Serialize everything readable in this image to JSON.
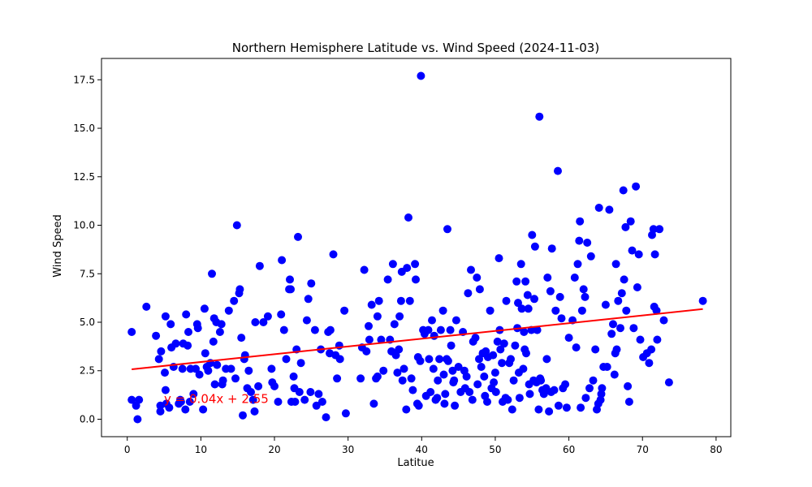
{
  "chart_data": {
    "type": "scatter",
    "title": "Northern Hemisphere Latitude vs. Wind Speed (2024-11-03)",
    "xlabel": "Latitue",
    "ylabel": "Wind Speed",
    "xlim": [
      -3.5,
      82
    ],
    "ylim": [
      -0.9,
      18.6
    ],
    "xticks": [
      0,
      10,
      20,
      30,
      40,
      50,
      60,
      70,
      80
    ],
    "yticks": [
      0.0,
      2.5,
      5.0,
      7.5,
      10.0,
      12.5,
      15.0,
      17.5
    ],
    "ytick_labels": [
      "0.0",
      "2.5",
      "5.0",
      "7.5",
      "10.0",
      "12.5",
      "15.0",
      "17.5"
    ],
    "grid": false,
    "point_color": "#0000ff",
    "line_color": "#ff0000",
    "regression": {
      "slope": 0.04,
      "intercept": 2.55,
      "x_range": [
        0.6,
        78.2
      ]
    },
    "annotation": {
      "text": "y = 0.04x + 2.55",
      "x": 5.0,
      "y": 1.05
    },
    "points": [
      [
        0.6,
        4.5
      ],
      [
        0.6,
        1.0
      ],
      [
        1.2,
        0.7
      ],
      [
        1.4,
        0.0
      ],
      [
        1.6,
        1.0
      ],
      [
        2.6,
        5.8
      ],
      [
        3.9,
        4.3
      ],
      [
        4.3,
        3.1
      ],
      [
        4.6,
        3.5
      ],
      [
        4.5,
        0.7
      ],
      [
        4.5,
        0.4
      ],
      [
        5.2,
        5.3
      ],
      [
        5.1,
        2.4
      ],
      [
        5.2,
        1.5
      ],
      [
        5.3,
        0.8
      ],
      [
        5.7,
        0.6
      ],
      [
        5.9,
        4.9
      ],
      [
        6.0,
        3.7
      ],
      [
        6.3,
        2.7
      ],
      [
        6.6,
        3.9
      ],
      [
        7.0,
        0.8
      ],
      [
        7.2,
        1.0
      ],
      [
        7.3,
        0.9
      ],
      [
        7.5,
        2.6
      ],
      [
        7.6,
        3.9
      ],
      [
        7.9,
        0.5
      ],
      [
        8.0,
        5.4
      ],
      [
        8.2,
        3.8
      ],
      [
        8.3,
        4.5
      ],
      [
        8.5,
        0.9
      ],
      [
        8.6,
        2.6
      ],
      [
        9.0,
        1.3
      ],
      [
        9.3,
        2.6
      ],
      [
        9.5,
        4.9
      ],
      [
        9.6,
        4.7
      ],
      [
        9.8,
        2.3
      ],
      [
        10.3,
        0.5
      ],
      [
        10.5,
        5.7
      ],
      [
        10.6,
        3.4
      ],
      [
        10.8,
        2.7
      ],
      [
        11.0,
        2.5
      ],
      [
        11.3,
        2.9
      ],
      [
        11.5,
        7.5
      ],
      [
        11.7,
        4.0
      ],
      [
        11.8,
        5.2
      ],
      [
        11.9,
        1.8
      ],
      [
        12.1,
        5.0
      ],
      [
        12.2,
        2.8
      ],
      [
        12.6,
        4.5
      ],
      [
        12.8,
        4.9
      ],
      [
        12.9,
        1.8
      ],
      [
        13.0,
        2.0
      ],
      [
        13.4,
        2.6
      ],
      [
        13.8,
        5.6
      ],
      [
        14.1,
        2.6
      ],
      [
        14.5,
        6.1
      ],
      [
        14.7,
        2.1
      ],
      [
        14.9,
        10.0
      ],
      [
        15.2,
        6.5
      ],
      [
        15.3,
        6.7
      ],
      [
        15.5,
        4.2
      ],
      [
        15.7,
        0.2
      ],
      [
        15.9,
        3.1
      ],
      [
        16.0,
        3.3
      ],
      [
        16.3,
        1.6
      ],
      [
        16.5,
        2.5
      ],
      [
        16.8,
        1.4
      ],
      [
        17.1,
        1.0
      ],
      [
        17.3,
        0.4
      ],
      [
        17.4,
        5.0
      ],
      [
        17.8,
        1.7
      ],
      [
        18.0,
        7.9
      ],
      [
        18.5,
        5.0
      ],
      [
        19.1,
        5.3
      ],
      [
        19.6,
        2.6
      ],
      [
        19.7,
        1.9
      ],
      [
        20.0,
        1.7
      ],
      [
        20.5,
        0.9
      ],
      [
        20.9,
        5.4
      ],
      [
        21.0,
        8.2
      ],
      [
        21.3,
        4.6
      ],
      [
        21.6,
        3.1
      ],
      [
        22.0,
        6.7
      ],
      [
        22.1,
        7.2
      ],
      [
        22.2,
        6.7
      ],
      [
        22.3,
        0.9
      ],
      [
        22.6,
        2.2
      ],
      [
        22.7,
        1.6
      ],
      [
        22.8,
        0.9
      ],
      [
        23.0,
        3.6
      ],
      [
        23.2,
        9.4
      ],
      [
        23.4,
        1.4
      ],
      [
        23.6,
        2.9
      ],
      [
        24.1,
        1.0
      ],
      [
        24.4,
        5.1
      ],
      [
        24.6,
        6.2
      ],
      [
        24.9,
        1.4
      ],
      [
        25.0,
        7.0
      ],
      [
        25.5,
        4.6
      ],
      [
        25.7,
        0.7
      ],
      [
        26.0,
        1.3
      ],
      [
        26.3,
        3.6
      ],
      [
        26.5,
        0.9
      ],
      [
        27.0,
        0.1
      ],
      [
        27.3,
        4.5
      ],
      [
        27.5,
        3.4
      ],
      [
        27.6,
        4.6
      ],
      [
        28.0,
        8.5
      ],
      [
        28.3,
        3.3
      ],
      [
        28.5,
        2.1
      ],
      [
        28.8,
        3.8
      ],
      [
        28.9,
        3.1
      ],
      [
        29.5,
        5.6
      ],
      [
        29.7,
        0.3
      ],
      [
        31.7,
        2.1
      ],
      [
        31.9,
        3.7
      ],
      [
        32.2,
        7.7
      ],
      [
        32.5,
        3.5
      ],
      [
        32.8,
        4.8
      ],
      [
        32.9,
        4.1
      ],
      [
        33.2,
        5.9
      ],
      [
        33.5,
        0.8
      ],
      [
        33.8,
        2.1
      ],
      [
        34.0,
        2.2
      ],
      [
        34.0,
        5.3
      ],
      [
        34.2,
        6.1
      ],
      [
        34.5,
        4.1
      ],
      [
        34.8,
        2.5
      ],
      [
        35.4,
        7.2
      ],
      [
        35.7,
        4.1
      ],
      [
        35.9,
        3.5
      ],
      [
        36.1,
        8.0
      ],
      [
        36.3,
        4.9
      ],
      [
        36.5,
        3.3
      ],
      [
        36.7,
        2.4
      ],
      [
        36.9,
        3.6
      ],
      [
        37.0,
        5.3
      ],
      [
        37.2,
        6.1
      ],
      [
        37.3,
        7.6
      ],
      [
        37.4,
        2.0
      ],
      [
        37.6,
        2.6
      ],
      [
        37.9,
        0.5
      ],
      [
        38.0,
        7.8
      ],
      [
        38.2,
        10.4
      ],
      [
        38.4,
        6.1
      ],
      [
        38.6,
        2.1
      ],
      [
        38.8,
        1.5
      ],
      [
        39.1,
        8.0
      ],
      [
        39.2,
        7.2
      ],
      [
        39.4,
        0.8
      ],
      [
        39.5,
        3.2
      ],
      [
        39.6,
        0.7
      ],
      [
        39.8,
        3.0
      ],
      [
        39.9,
        17.7
      ],
      [
        40.2,
        4.6
      ],
      [
        40.4,
        4.4
      ],
      [
        40.6,
        1.2
      ],
      [
        40.9,
        4.6
      ],
      [
        41.0,
        3.1
      ],
      [
        41.2,
        1.4
      ],
      [
        41.4,
        5.1
      ],
      [
        41.6,
        2.6
      ],
      [
        41.7,
        4.3
      ],
      [
        41.9,
        1.0
      ],
      [
        42.1,
        1.1
      ],
      [
        42.2,
        2.0
      ],
      [
        42.4,
        3.1
      ],
      [
        42.6,
        4.6
      ],
      [
        42.9,
        5.6
      ],
      [
        43.0,
        2.3
      ],
      [
        43.1,
        0.8
      ],
      [
        43.2,
        1.3
      ],
      [
        43.4,
        3.1
      ],
      [
        43.5,
        9.8
      ],
      [
        43.6,
        3.0
      ],
      [
        43.9,
        4.6
      ],
      [
        44.0,
        3.8
      ],
      [
        44.2,
        2.5
      ],
      [
        44.3,
        1.9
      ],
      [
        44.4,
        2.0
      ],
      [
        44.5,
        0.7
      ],
      [
        44.7,
        5.1
      ],
      [
        45.0,
        2.7
      ],
      [
        45.3,
        1.4
      ],
      [
        45.6,
        4.5
      ],
      [
        45.8,
        2.5
      ],
      [
        45.9,
        1.6
      ],
      [
        46.1,
        2.2
      ],
      [
        46.3,
        6.5
      ],
      [
        46.5,
        1.4
      ],
      [
        46.7,
        7.7
      ],
      [
        46.9,
        1.0
      ],
      [
        47.0,
        4.0
      ],
      [
        47.3,
        4.2
      ],
      [
        47.5,
        7.3
      ],
      [
        47.6,
        1.8
      ],
      [
        47.8,
        3.1
      ],
      [
        47.9,
        6.7
      ],
      [
        48.1,
        2.7
      ],
      [
        48.3,
        3.4
      ],
      [
        48.5,
        2.2
      ],
      [
        48.6,
        1.2
      ],
      [
        48.7,
        3.5
      ],
      [
        48.9,
        0.9
      ],
      [
        49.0,
        3.2
      ],
      [
        49.3,
        5.6
      ],
      [
        49.5,
        1.6
      ],
      [
        49.7,
        3.3
      ],
      [
        49.8,
        1.9
      ],
      [
        50.0,
        2.4
      ],
      [
        50.1,
        1.4
      ],
      [
        50.3,
        4.0
      ],
      [
        50.5,
        8.3
      ],
      [
        50.6,
        4.6
      ],
      [
        50.7,
        3.6
      ],
      [
        50.9,
        2.9
      ],
      [
        51.0,
        0.9
      ],
      [
        51.2,
        3.9
      ],
      [
        51.4,
        1.1
      ],
      [
        51.5,
        6.1
      ],
      [
        51.7,
        1.0
      ],
      [
        51.9,
        2.9
      ],
      [
        52.1,
        3.1
      ],
      [
        52.3,
        0.5
      ],
      [
        52.5,
        2.0
      ],
      [
        52.7,
        3.8
      ],
      [
        52.9,
        7.1
      ],
      [
        53.0,
        4.7
      ],
      [
        53.1,
        6.0
      ],
      [
        53.2,
        2.4
      ],
      [
        53.3,
        1.1
      ],
      [
        53.5,
        8.0
      ],
      [
        53.6,
        5.7
      ],
      [
        53.8,
        2.6
      ],
      [
        53.9,
        4.5
      ],
      [
        54.0,
        3.6
      ],
      [
        54.1,
        7.1
      ],
      [
        54.2,
        3.4
      ],
      [
        54.4,
        6.4
      ],
      [
        54.5,
        5.7
      ],
      [
        54.6,
        1.8
      ],
      [
        54.7,
        1.3
      ],
      [
        54.9,
        4.6
      ],
      [
        55.0,
        9.5
      ],
      [
        55.2,
        2.0
      ],
      [
        55.3,
        6.2
      ],
      [
        55.4,
        8.9
      ],
      [
        55.6,
        1.9
      ],
      [
        55.7,
        4.6
      ],
      [
        55.9,
        0.5
      ],
      [
        56.0,
        15.6
      ],
      [
        56.1,
        2.1
      ],
      [
        56.2,
        2.0
      ],
      [
        56.4,
        1.5
      ],
      [
        56.6,
        1.3
      ],
      [
        56.9,
        1.6
      ],
      [
        57.0,
        3.1
      ],
      [
        57.1,
        7.3
      ],
      [
        57.3,
        0.4
      ],
      [
        57.5,
        6.6
      ],
      [
        57.6,
        1.4
      ],
      [
        57.7,
        8.8
      ],
      [
        58.0,
        1.5
      ],
      [
        58.2,
        5.6
      ],
      [
        58.5,
        12.8
      ],
      [
        58.6,
        0.7
      ],
      [
        58.8,
        6.3
      ],
      [
        59.0,
        5.2
      ],
      [
        59.2,
        1.6
      ],
      [
        59.5,
        1.8
      ],
      [
        59.7,
        0.6
      ],
      [
        60.0,
        4.2
      ],
      [
        60.5,
        5.1
      ],
      [
        60.8,
        7.3
      ],
      [
        61.0,
        3.7
      ],
      [
        61.2,
        8.0
      ],
      [
        61.4,
        9.2
      ],
      [
        61.5,
        10.2
      ],
      [
        61.6,
        0.6
      ],
      [
        61.8,
        5.6
      ],
      [
        62.0,
        6.7
      ],
      [
        62.2,
        6.3
      ],
      [
        62.3,
        1.1
      ],
      [
        62.5,
        9.1
      ],
      [
        62.8,
        1.6
      ],
      [
        63.0,
        8.4
      ],
      [
        63.3,
        2.0
      ],
      [
        63.6,
        3.6
      ],
      [
        63.8,
        0.5
      ],
      [
        64.0,
        0.8
      ],
      [
        64.1,
        10.9
      ],
      [
        64.3,
        1.0
      ],
      [
        64.4,
        1.3
      ],
      [
        64.5,
        1.6
      ],
      [
        64.7,
        2.7
      ],
      [
        65.0,
        5.9
      ],
      [
        65.2,
        2.7
      ],
      [
        65.5,
        10.8
      ],
      [
        65.8,
        4.4
      ],
      [
        66.0,
        4.9
      ],
      [
        66.2,
        2.3
      ],
      [
        66.3,
        3.4
      ],
      [
        66.4,
        8.0
      ],
      [
        66.5,
        3.6
      ],
      [
        66.7,
        6.1
      ],
      [
        67.0,
        4.7
      ],
      [
        67.2,
        6.5
      ],
      [
        67.4,
        11.8
      ],
      [
        67.5,
        7.2
      ],
      [
        67.7,
        9.9
      ],
      [
        67.8,
        5.6
      ],
      [
        68.0,
        1.7
      ],
      [
        68.2,
        0.9
      ],
      [
        68.4,
        10.2
      ],
      [
        68.6,
        8.7
      ],
      [
        68.8,
        4.7
      ],
      [
        69.1,
        12.0
      ],
      [
        69.3,
        6.8
      ],
      [
        69.5,
        8.5
      ],
      [
        69.7,
        4.1
      ],
      [
        70.1,
        3.2
      ],
      [
        70.6,
        3.4
      ],
      [
        70.9,
        2.9
      ],
      [
        71.2,
        3.6
      ],
      [
        71.3,
        9.5
      ],
      [
        71.5,
        9.8
      ],
      [
        71.6,
        5.8
      ],
      [
        71.7,
        8.5
      ],
      [
        71.9,
        5.6
      ],
      [
        72.0,
        4.1
      ],
      [
        72.3,
        9.8
      ],
      [
        72.9,
        5.1
      ],
      [
        73.6,
        1.9
      ],
      [
        78.2,
        6.1
      ]
    ]
  }
}
